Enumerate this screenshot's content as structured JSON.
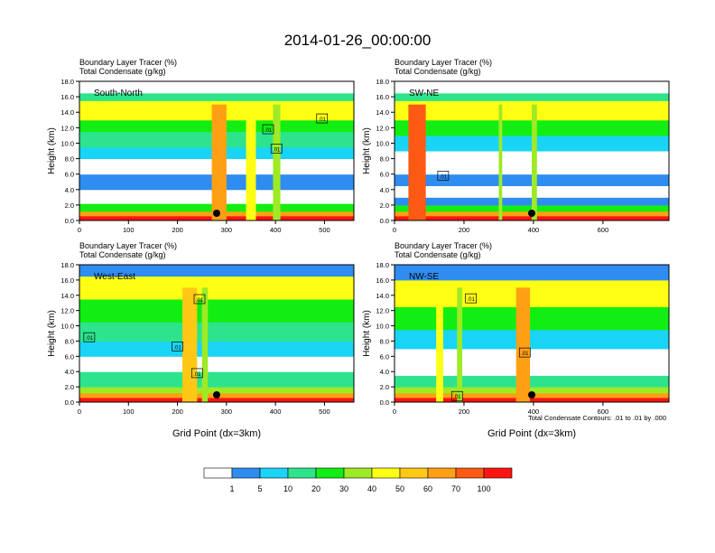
{
  "figure": {
    "title": "2014-01-26_00:00:00",
    "contour_note": "Total Condensate Contours: .01 to .01 by .000",
    "contour_label": ".01"
  },
  "colorbar": {
    "colors": [
      "#ffffff",
      "#2f8cf0",
      "#19d4f5",
      "#2de48c",
      "#12ee12",
      "#9eea25",
      "#ffff14",
      "#ffc814",
      "#ffa014",
      "#ff5a14",
      "#ff1414"
    ],
    "labels": [
      "1",
      "5",
      "10",
      "20",
      "30",
      "40",
      "50",
      "60",
      "70",
      "100"
    ]
  },
  "chart_data": [
    {
      "type": "heatmap",
      "id": "south-north",
      "subtitle1": "Boundary Layer Tracer   (%)",
      "subtitle2": "Total Condensate   (g/kg)",
      "panel_label": "South-North",
      "ylabel": "Height (km)",
      "xlabel": "",
      "xlim": [
        0,
        560
      ],
      "ylim": [
        0,
        18
      ],
      "xticks": [
        0,
        100,
        200,
        300,
        400,
        500
      ],
      "yticks": [
        0.0,
        2.0,
        4.0,
        6.0,
        8.0,
        10.0,
        12.0,
        14.0,
        16.0,
        18.0
      ],
      "marker_x": 280,
      "bands": [
        {
          "y0": 0.0,
          "y1": 0.6,
          "level": 10
        },
        {
          "y0": 0.6,
          "y1": 1.2,
          "level": 8
        },
        {
          "y0": 1.2,
          "y1": 2.2,
          "level": 4
        },
        {
          "y0": 2.2,
          "y1": 4.0,
          "level": 0
        },
        {
          "y0": 4.0,
          "y1": 6.0,
          "level": 1
        },
        {
          "y0": 6.0,
          "y1": 8.0,
          "level": 0
        },
        {
          "y0": 8.0,
          "y1": 9.5,
          "level": 2
        },
        {
          "y0": 9.5,
          "y1": 11.5,
          "level": 3
        },
        {
          "y0": 11.5,
          "y1": 13.0,
          "level": 4
        },
        {
          "y0": 13.0,
          "y1": 15.5,
          "level": 6
        },
        {
          "y0": 15.5,
          "y1": 16.5,
          "level": 3
        },
        {
          "y0": 16.5,
          "y1": 18.0,
          "level": 0
        }
      ],
      "columns": [
        {
          "x0": 270,
          "x1": 300,
          "level": 8
        },
        {
          "x0": 340,
          "x1": 360,
          "level": 6
        },
        {
          "x0": 395,
          "x1": 410,
          "level": 5
        }
      ],
      "contour_labels": [
        {
          "x": 385,
          "y": 11.8
        },
        {
          "x": 402,
          "y": 9.3
        },
        {
          "x": 495,
          "y": 13.2
        }
      ]
    },
    {
      "type": "heatmap",
      "id": "sw-ne",
      "subtitle1": "Boundary Layer Tracer   (%)",
      "subtitle2": "Total Condensate   (g/kg)",
      "panel_label": "SW-NE",
      "ylabel": "Height (km)",
      "xlabel": "",
      "xlim": [
        0,
        790
      ],
      "ylim": [
        0,
        18
      ],
      "xticks": [
        0,
        200,
        400,
        600
      ],
      "yticks": [
        0.0,
        2.0,
        4.0,
        6.0,
        8.0,
        10.0,
        12.0,
        14.0,
        16.0,
        18.0
      ],
      "marker_x": 395,
      "bands": [
        {
          "y0": 0.0,
          "y1": 0.6,
          "level": 10
        },
        {
          "y0": 0.6,
          "y1": 1.2,
          "level": 8
        },
        {
          "y0": 1.2,
          "y1": 2.0,
          "level": 4
        },
        {
          "y0": 2.0,
          "y1": 3.0,
          "level": 1
        },
        {
          "y0": 3.0,
          "y1": 4.5,
          "level": 0
        },
        {
          "y0": 4.5,
          "y1": 6.0,
          "level": 1
        },
        {
          "y0": 6.0,
          "y1": 9.0,
          "level": 0
        },
        {
          "y0": 9.0,
          "y1": 11.0,
          "level": 2
        },
        {
          "y0": 11.0,
          "y1": 13.0,
          "level": 4
        },
        {
          "y0": 13.0,
          "y1": 15.5,
          "level": 6
        },
        {
          "y0": 15.5,
          "y1": 16.5,
          "level": 3
        },
        {
          "y0": 16.5,
          "y1": 18.0,
          "level": 0
        }
      ],
      "columns": [
        {
          "x0": 40,
          "x1": 90,
          "level": 9
        },
        {
          "x0": 300,
          "x1": 310,
          "level": 5
        },
        {
          "x0": 395,
          "x1": 410,
          "level": 5
        }
      ],
      "contour_labels": [
        {
          "x": 140,
          "y": 5.8
        }
      ]
    },
    {
      "type": "heatmap",
      "id": "west-east",
      "subtitle1": "Boundary Layer Tracer   (%)",
      "subtitle2": "Total Condensate   (g/kg)",
      "panel_label": "West-East",
      "ylabel": "Height (km)",
      "xlabel": "Grid Point (dx=3km)",
      "xlim": [
        0,
        560
      ],
      "ylim": [
        0,
        18
      ],
      "xticks": [
        0,
        100,
        200,
        300,
        400,
        500
      ],
      "yticks": [
        0.0,
        2.0,
        4.0,
        6.0,
        8.0,
        10.0,
        12.0,
        14.0,
        16.0,
        18.0
      ],
      "marker_x": 280,
      "bands": [
        {
          "y0": 0.0,
          "y1": 0.6,
          "level": 10
        },
        {
          "y0": 0.6,
          "y1": 1.2,
          "level": 8
        },
        {
          "y0": 1.2,
          "y1": 2.0,
          "level": 5
        },
        {
          "y0": 2.0,
          "y1": 4.0,
          "level": 3
        },
        {
          "y0": 4.0,
          "y1": 6.0,
          "level": 0
        },
        {
          "y0": 6.0,
          "y1": 8.0,
          "level": 2
        },
        {
          "y0": 8.0,
          "y1": 10.5,
          "level": 3
        },
        {
          "y0": 10.5,
          "y1": 13.5,
          "level": 4
        },
        {
          "y0": 13.5,
          "y1": 16.5,
          "level": 6
        },
        {
          "y0": 16.5,
          "y1": 18.0,
          "level": 1
        }
      ],
      "columns": [
        {
          "x0": 210,
          "x1": 240,
          "level": 7
        },
        {
          "x0": 250,
          "x1": 262,
          "level": 5
        }
      ],
      "contour_labels": [
        {
          "x": 20,
          "y": 8.5
        },
        {
          "x": 200,
          "y": 7.3
        },
        {
          "x": 245,
          "y": 13.5
        },
        {
          "x": 240,
          "y": 3.8
        }
      ]
    },
    {
      "type": "heatmap",
      "id": "nw-se",
      "subtitle1": "Boundary Layer Tracer   (%)",
      "subtitle2": "Total Condensate   (g/kg)",
      "panel_label": "NW-SE",
      "ylabel": "Height (km)",
      "xlabel": "Grid Point (dx=3km)",
      "xlim": [
        0,
        790
      ],
      "ylim": [
        0,
        18
      ],
      "xticks": [
        0,
        200,
        400,
        600
      ],
      "yticks": [
        0.0,
        2.0,
        4.0,
        6.0,
        8.0,
        10.0,
        12.0,
        14.0,
        16.0,
        18.0
      ],
      "marker_x": 395,
      "bands": [
        {
          "y0": 0.0,
          "y1": 0.6,
          "level": 10
        },
        {
          "y0": 0.6,
          "y1": 1.2,
          "level": 8
        },
        {
          "y0": 1.2,
          "y1": 2.0,
          "level": 5
        },
        {
          "y0": 2.0,
          "y1": 3.5,
          "level": 3
        },
        {
          "y0": 3.5,
          "y1": 5.0,
          "level": 0
        },
        {
          "y0": 5.0,
          "y1": 7.0,
          "level": 0
        },
        {
          "y0": 7.0,
          "y1": 9.5,
          "level": 2
        },
        {
          "y0": 9.5,
          "y1": 12.5,
          "level": 4
        },
        {
          "y0": 12.5,
          "y1": 16.0,
          "level": 6
        },
        {
          "y0": 16.0,
          "y1": 18.0,
          "level": 1
        }
      ],
      "columns": [
        {
          "x0": 350,
          "x1": 390,
          "level": 8
        },
        {
          "x0": 120,
          "x1": 140,
          "level": 6
        },
        {
          "x0": 180,
          "x1": 195,
          "level": 5
        }
      ],
      "contour_labels": [
        {
          "x": 220,
          "y": 13.6
        },
        {
          "x": 375,
          "y": 6.5
        },
        {
          "x": 180,
          "y": 0.8
        }
      ]
    }
  ]
}
